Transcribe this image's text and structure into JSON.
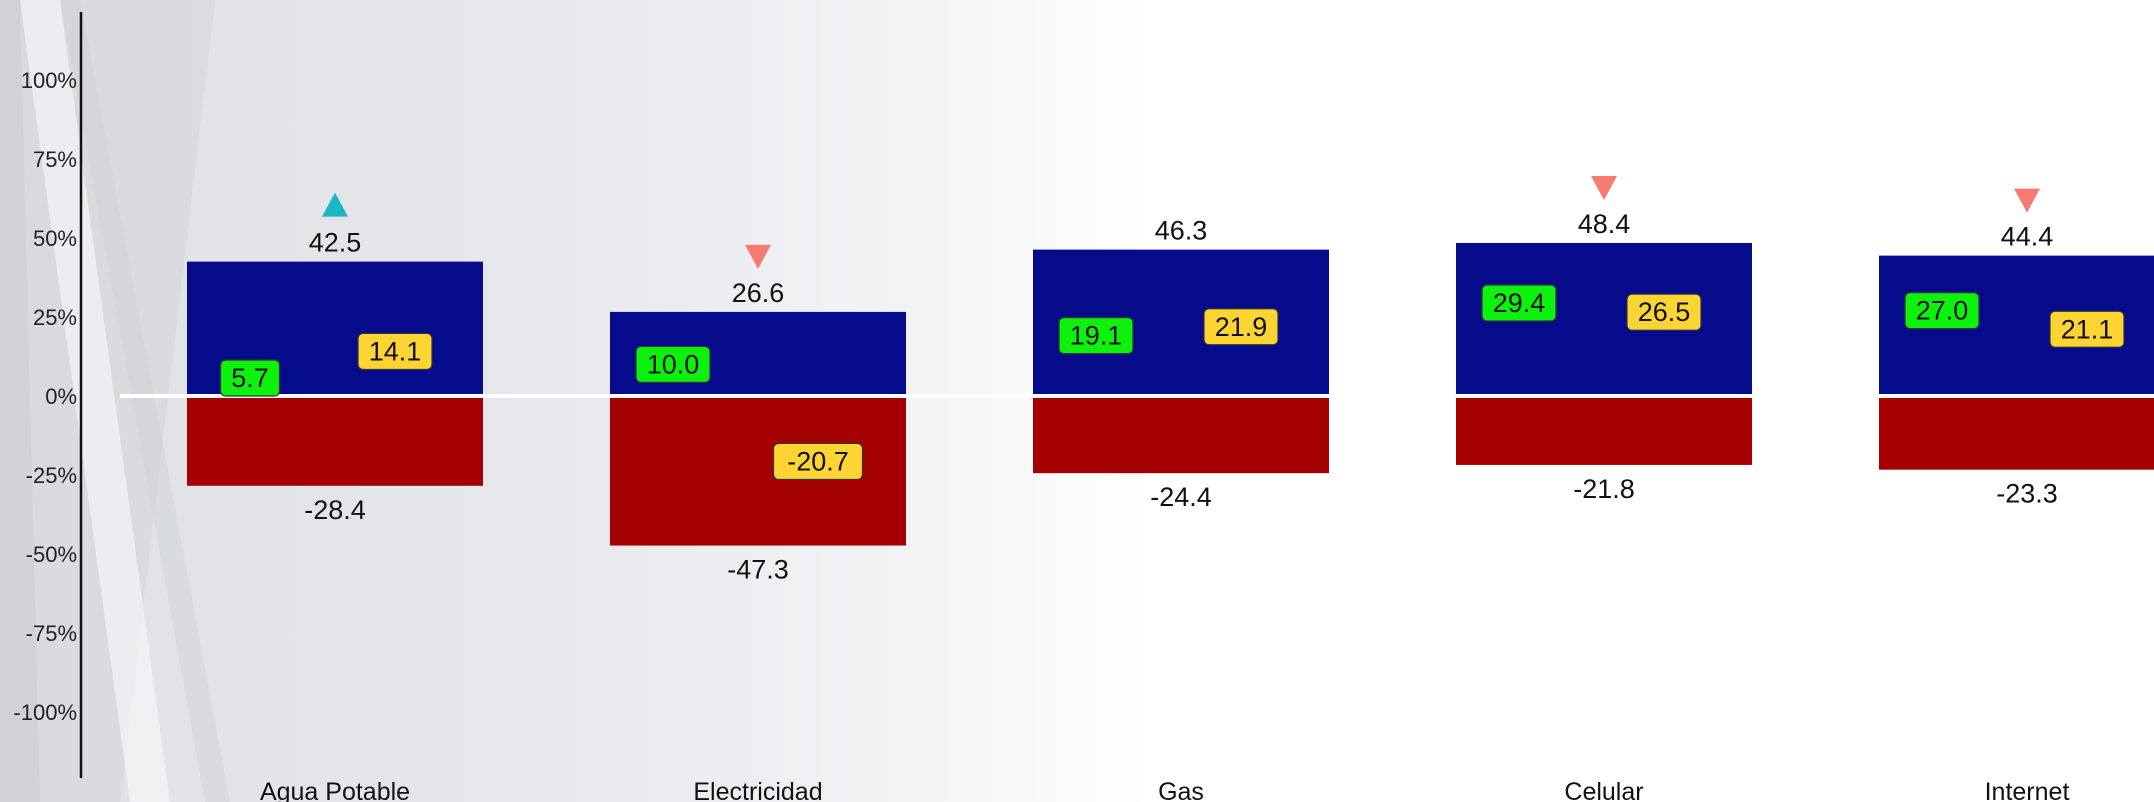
{
  "chart_data": {
    "type": "bar",
    "categories": [
      "Agua Potable",
      "Electricidad",
      "Gas",
      "Celular",
      "Internet"
    ],
    "series": [
      {
        "values": [
          42.5,
          26.6,
          46.3,
          48.4,
          44.4
        ],
        "color": "#060b8c"
      },
      {
        "values": [
          -28.4,
          -47.3,
          -24.4,
          -21.8,
          -23.3
        ],
        "color": "#a50000"
      }
    ],
    "green_tags": [
      5.7,
      10.0,
      19.1,
      29.4,
      27.0
    ],
    "yellow_tags": [
      14.1,
      -20.7,
      21.9,
      26.5,
      21.1
    ],
    "green_tag_color": "#0cf20c",
    "yellow_tag_color": "#fcd535",
    "trend_markers": [
      "up",
      "down",
      null,
      "down",
      "down"
    ],
    "trend_colors": {
      "up": "#1ab8c4",
      "down": "#f77b72"
    },
    "yticks": [
      -100,
      -75,
      -50,
      -25,
      0,
      25,
      50,
      75,
      100
    ],
    "ytick_format": "{v}%",
    "ylim": [
      -120,
      120
    ],
    "zero_line_color": "#ffffff",
    "axis_color": "#111111"
  }
}
